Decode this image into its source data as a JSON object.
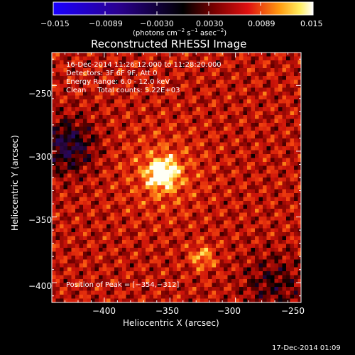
{
  "colorbar": {
    "ticks": [
      "−0.015",
      "−0.0089",
      "−0.0030",
      "0.0030",
      "0.0089",
      "0.015"
    ],
    "unit_main": "(photons cm",
    "unit_sup1": "−2",
    "unit_mid": " s",
    "unit_sup2": "−1",
    "unit_end": " asec",
    "unit_sup3": "−2",
    "unit_close": ")"
  },
  "title": "Reconstructed RHESSI Image",
  "info": {
    "line1": "16-Dec-2014 11:26:12.000 to 11:28:20.000",
    "line2": "Detectors: 3F 6F 9F, Att 0",
    "line3": "Energy Range: 6.0 - 12.0 keV",
    "line4": "Clean     Total counts: 5.22E+03",
    "peak": "Position of Peak = [−354,−312]"
  },
  "axes": {
    "xlabel": "Heliocentric X (arcsec)",
    "ylabel": "Heliocentric Y (arcsec)",
    "xticks": [
      "−400",
      "−350",
      "−300",
      "−250"
    ],
    "yticks": [
      "−250",
      "−300",
      "−350",
      "−400"
    ]
  },
  "timestamp": "17-Dec-2014 01:09",
  "colors": {
    "background": "#000000",
    "low": "#1a00ff",
    "mid": "#000000",
    "high": "#ffffff"
  }
}
